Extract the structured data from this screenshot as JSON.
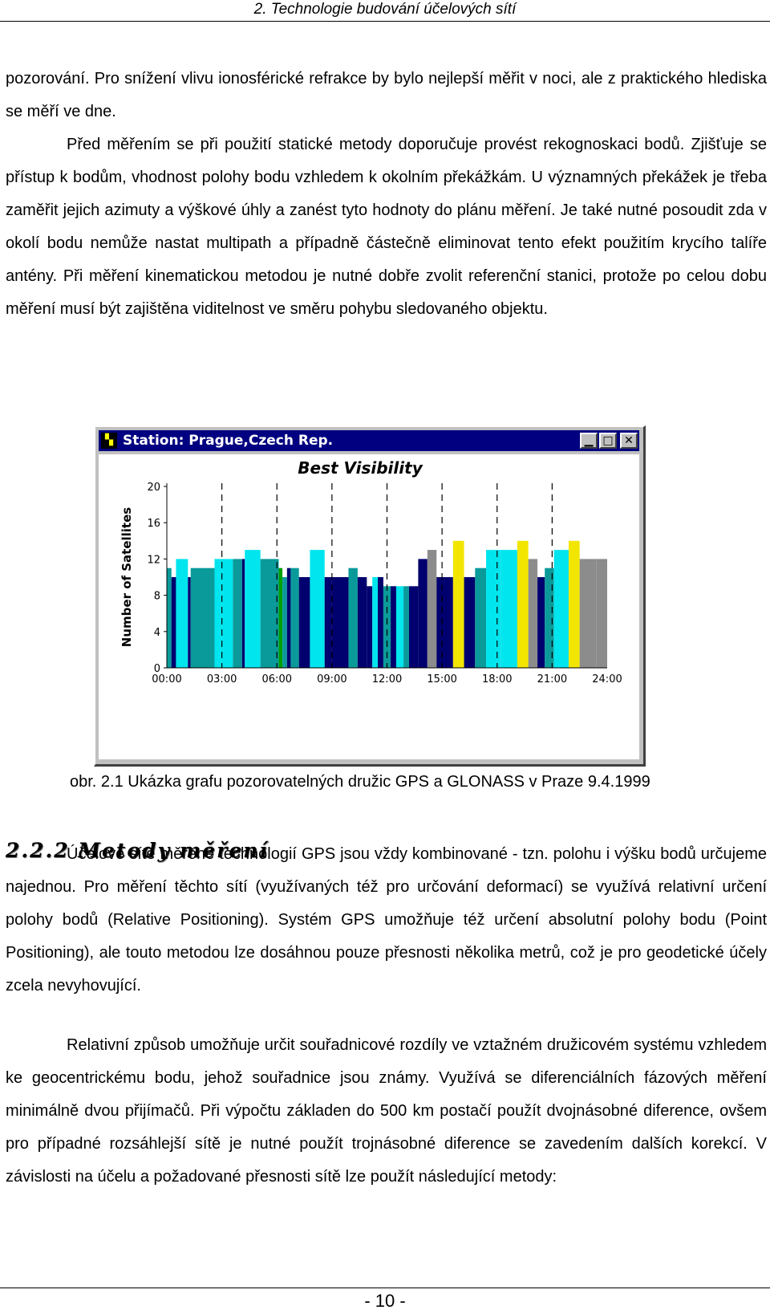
{
  "header": {
    "title": "2. Technologie budování účelových sítí"
  },
  "paragraphs": {
    "p1": "pozorování. Pro snížení vlivu ionosférické refrakce by bylo nejlepší měřit v noci, ale z praktického hlediska se měří ve dne.",
    "p2": "Před měřením se při použití statické metody doporučuje provést rekognoskaci bodů. Zjišťuje se přístup k bodům, vhodnost polohy bodu vzhledem k okolním překážkám. U významných překážek je třeba zaměřit jejich azimuty a výškové úhly a zanést tyto hodnoty do plánu měření. Je také nutné posoudit zda v okolí bodu nemůže nastat multipath a případně částečně eliminovat tento efekt použitím krycího talíře antény. Při měření kinematickou metodou je nutné dobře zvolit referenční stanici, protože po celou dobu měření musí být zajištěna viditelnost ve směru pohybu sledovaného objektu.",
    "p3": "Účelové sítě měřené technologií GPS jsou vždy kombinované - tzn. polohu i výšku bodů určujeme najednou. Pro měření těchto sítí (využívaných též pro určování deformací) se využívá relativní určení polohy bodů (Relative Positioning). Systém GPS umožňuje též určení absolutní polohy bodu (Point Positioning), ale touto metodou lze dosáhnou pouze přesnosti několika metrů, což je pro geodetické účely zcela nevyhovující.",
    "p4": "Relativní způsob umožňuje určit souřadnicové rozdíly ve vztažném družicovém systému vzhledem ke geocentrickému bodu, jehož souřadnice jsou známy. Využívá se diferenciálních fázových měření minimálně dvou přijímačů. Při výpočtu základen do 500 km postačí použít dvojnásobné diference, ovšem pro případné rozsáhlejší sítě je nutné použít trojnásobné diference se zavedením dalších korekcí. V závislosti na účelu a požadované přesnosti sítě lze použít následující metody:"
  },
  "figure": {
    "window_title": "Station: Prague,Czech Rep.",
    "app_icon_glyph": "▚",
    "minimize_glyph": "▁",
    "maximize_glyph": "□",
    "close_glyph": "✕",
    "caption": "obr. 2.1 Ukázka grafu pozorovatelných družic GPS a GLONASS v Praze 9.4.1999"
  },
  "chart_data": {
    "type": "bar",
    "title": "Best Visibility",
    "ylabel": "Number of Satellites",
    "xlabel": "",
    "ylim": [
      0,
      20
    ],
    "yticks": [
      "0",
      "4",
      "8",
      "12",
      "16",
      "20"
    ],
    "xticks": [
      "00:00",
      "03:00",
      "06:00",
      "09:00",
      "12:00",
      "15:00",
      "18:00",
      "21:00",
      "24:00"
    ],
    "grid": "vertical dashed",
    "x_range_hours": [
      0,
      24
    ],
    "colors": {
      "cyan": "#00e5ee",
      "teal": "#0a9a9a",
      "navy": "#00006e",
      "grey": "#8c8c8c",
      "yellow": "#f2e600",
      "green": "#00a000"
    },
    "bars": [
      {
        "start": 0.0,
        "end": 0.25,
        "value": 11,
        "color": "teal"
      },
      {
        "start": 0.25,
        "end": 0.5,
        "value": 10,
        "color": "navy"
      },
      {
        "start": 0.5,
        "end": 1.15,
        "value": 12,
        "color": "cyan"
      },
      {
        "start": 1.15,
        "end": 1.3,
        "value": 10,
        "color": "navy"
      },
      {
        "start": 1.3,
        "end": 2.6,
        "value": 11,
        "color": "teal"
      },
      {
        "start": 2.6,
        "end": 3.6,
        "value": 12,
        "color": "cyan"
      },
      {
        "start": 3.6,
        "end": 4.1,
        "value": 12,
        "color": "teal"
      },
      {
        "start": 4.1,
        "end": 4.25,
        "value": 12,
        "color": "navy"
      },
      {
        "start": 4.25,
        "end": 5.1,
        "value": 13,
        "color": "cyan"
      },
      {
        "start": 5.1,
        "end": 6.1,
        "value": 12,
        "color": "teal"
      },
      {
        "start": 6.1,
        "end": 6.3,
        "value": 11,
        "color": "green"
      },
      {
        "start": 6.3,
        "end": 6.55,
        "value": 10,
        "color": "teal"
      },
      {
        "start": 6.55,
        "end": 6.75,
        "value": 11,
        "color": "navy"
      },
      {
        "start": 6.75,
        "end": 7.2,
        "value": 11,
        "color": "teal"
      },
      {
        "start": 7.2,
        "end": 7.8,
        "value": 10,
        "color": "navy"
      },
      {
        "start": 7.8,
        "end": 8.6,
        "value": 13,
        "color": "cyan"
      },
      {
        "start": 8.6,
        "end": 9.0,
        "value": 10,
        "color": "navy"
      },
      {
        "start": 9.0,
        "end": 9.9,
        "value": 10,
        "color": "navy"
      },
      {
        "start": 9.9,
        "end": 10.4,
        "value": 11,
        "color": "teal"
      },
      {
        "start": 10.4,
        "end": 10.9,
        "value": 10,
        "color": "navy"
      },
      {
        "start": 10.9,
        "end": 11.2,
        "value": 9,
        "color": "navy"
      },
      {
        "start": 11.2,
        "end": 11.5,
        "value": 10,
        "color": "cyan"
      },
      {
        "start": 11.5,
        "end": 11.8,
        "value": 10,
        "color": "navy"
      },
      {
        "start": 11.8,
        "end": 12.2,
        "value": 9,
        "color": "teal"
      },
      {
        "start": 12.2,
        "end": 12.5,
        "value": 9,
        "color": "navy"
      },
      {
        "start": 12.5,
        "end": 12.9,
        "value": 9,
        "color": "cyan"
      },
      {
        "start": 12.9,
        "end": 13.2,
        "value": 9,
        "color": "teal"
      },
      {
        "start": 13.2,
        "end": 13.7,
        "value": 9,
        "color": "navy"
      },
      {
        "start": 13.7,
        "end": 14.2,
        "value": 12,
        "color": "navy"
      },
      {
        "start": 14.2,
        "end": 14.7,
        "value": 13,
        "color": "grey"
      },
      {
        "start": 14.7,
        "end": 15.6,
        "value": 10,
        "color": "navy"
      },
      {
        "start": 15.6,
        "end": 16.2,
        "value": 14,
        "color": "yellow"
      },
      {
        "start": 16.2,
        "end": 16.8,
        "value": 10,
        "color": "navy"
      },
      {
        "start": 16.8,
        "end": 17.4,
        "value": 11,
        "color": "teal"
      },
      {
        "start": 17.4,
        "end": 18.2,
        "value": 13,
        "color": "cyan"
      },
      {
        "start": 18.2,
        "end": 19.1,
        "value": 13,
        "color": "cyan"
      },
      {
        "start": 19.1,
        "end": 19.7,
        "value": 14,
        "color": "yellow"
      },
      {
        "start": 19.7,
        "end": 20.2,
        "value": 12,
        "color": "grey"
      },
      {
        "start": 20.2,
        "end": 20.6,
        "value": 10,
        "color": "navy"
      },
      {
        "start": 20.6,
        "end": 21.1,
        "value": 11,
        "color": "teal"
      },
      {
        "start": 21.1,
        "end": 21.9,
        "value": 13,
        "color": "cyan"
      },
      {
        "start": 21.9,
        "end": 22.5,
        "value": 14,
        "color": "yellow"
      },
      {
        "start": 22.5,
        "end": 23.4,
        "value": 12,
        "color": "grey"
      },
      {
        "start": 23.4,
        "end": 24.0,
        "value": 12,
        "color": "grey"
      }
    ]
  },
  "section": {
    "title": "2.2.2 Metody měření"
  },
  "footer": {
    "page_number": "- 10 -"
  }
}
